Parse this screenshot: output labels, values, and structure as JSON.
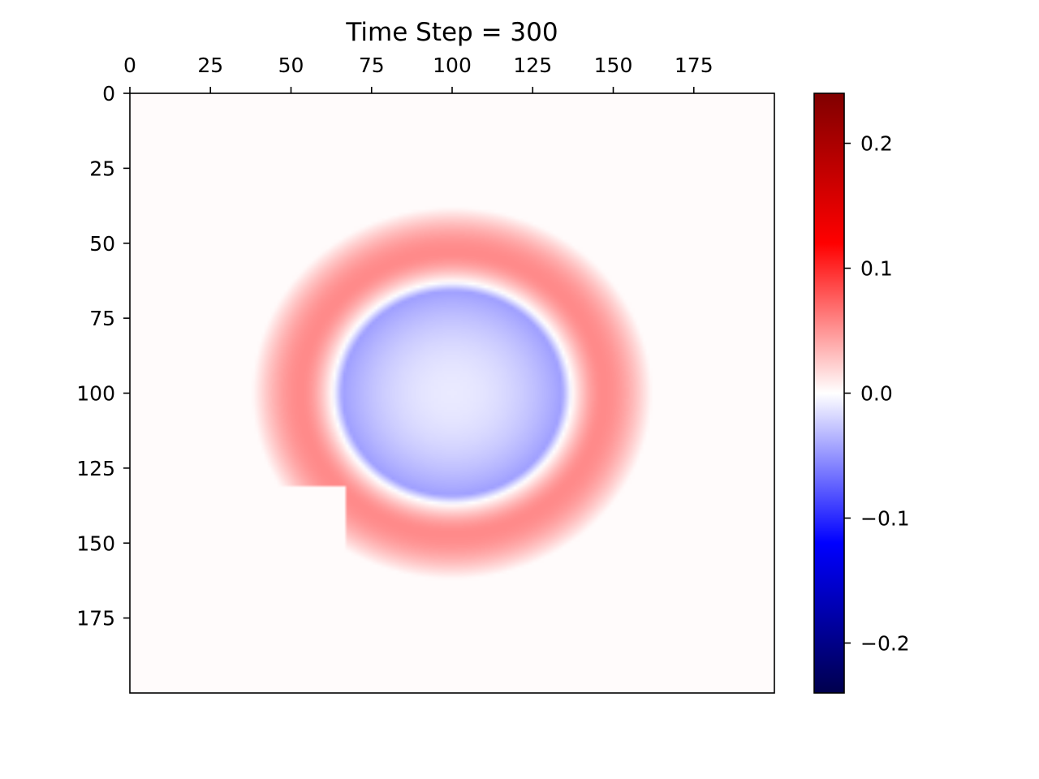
{
  "chart_data": {
    "type": "heatmap",
    "title": "Time Step = 300",
    "xlabel": "",
    "ylabel": "",
    "x_axis_position": "top",
    "xlim": [
      0,
      200
    ],
    "ylim": [
      200,
      0
    ],
    "x_ticks": [
      0,
      25,
      50,
      75,
      100,
      125,
      150,
      175
    ],
    "y_ticks": [
      0,
      25,
      50,
      75,
      100,
      125,
      150,
      175
    ],
    "colormap": "seismic",
    "colors": {
      "negative_extreme": "#00004d",
      "negative": "#0000ff",
      "zero": "#ffffff",
      "positive": "#ff0000",
      "positive_extreme": "#800000"
    },
    "colorbar": {
      "range": [
        -0.24,
        0.24
      ],
      "ticks": [
        0.2,
        0.1,
        0.0,
        -0.1,
        -0.2
      ],
      "tick_labels": [
        "0.2",
        "0.1",
        "0.0",
        "−0.1",
        "−0.2"
      ]
    },
    "field": {
      "description": "circular wave",
      "center": [
        100,
        100
      ],
      "background_value": 0.002,
      "inner_value_center": -0.01,
      "inner_value_edge": -0.045,
      "zero_crossing_radius": 37,
      "outer_ring_peak_value": 0.055,
      "outer_ring_peak_radius": 47,
      "outer_ring_extent_radius": 58,
      "masked_region": {
        "x": [
          0,
          67
        ],
        "y": [
          131,
          200
        ]
      }
    }
  }
}
